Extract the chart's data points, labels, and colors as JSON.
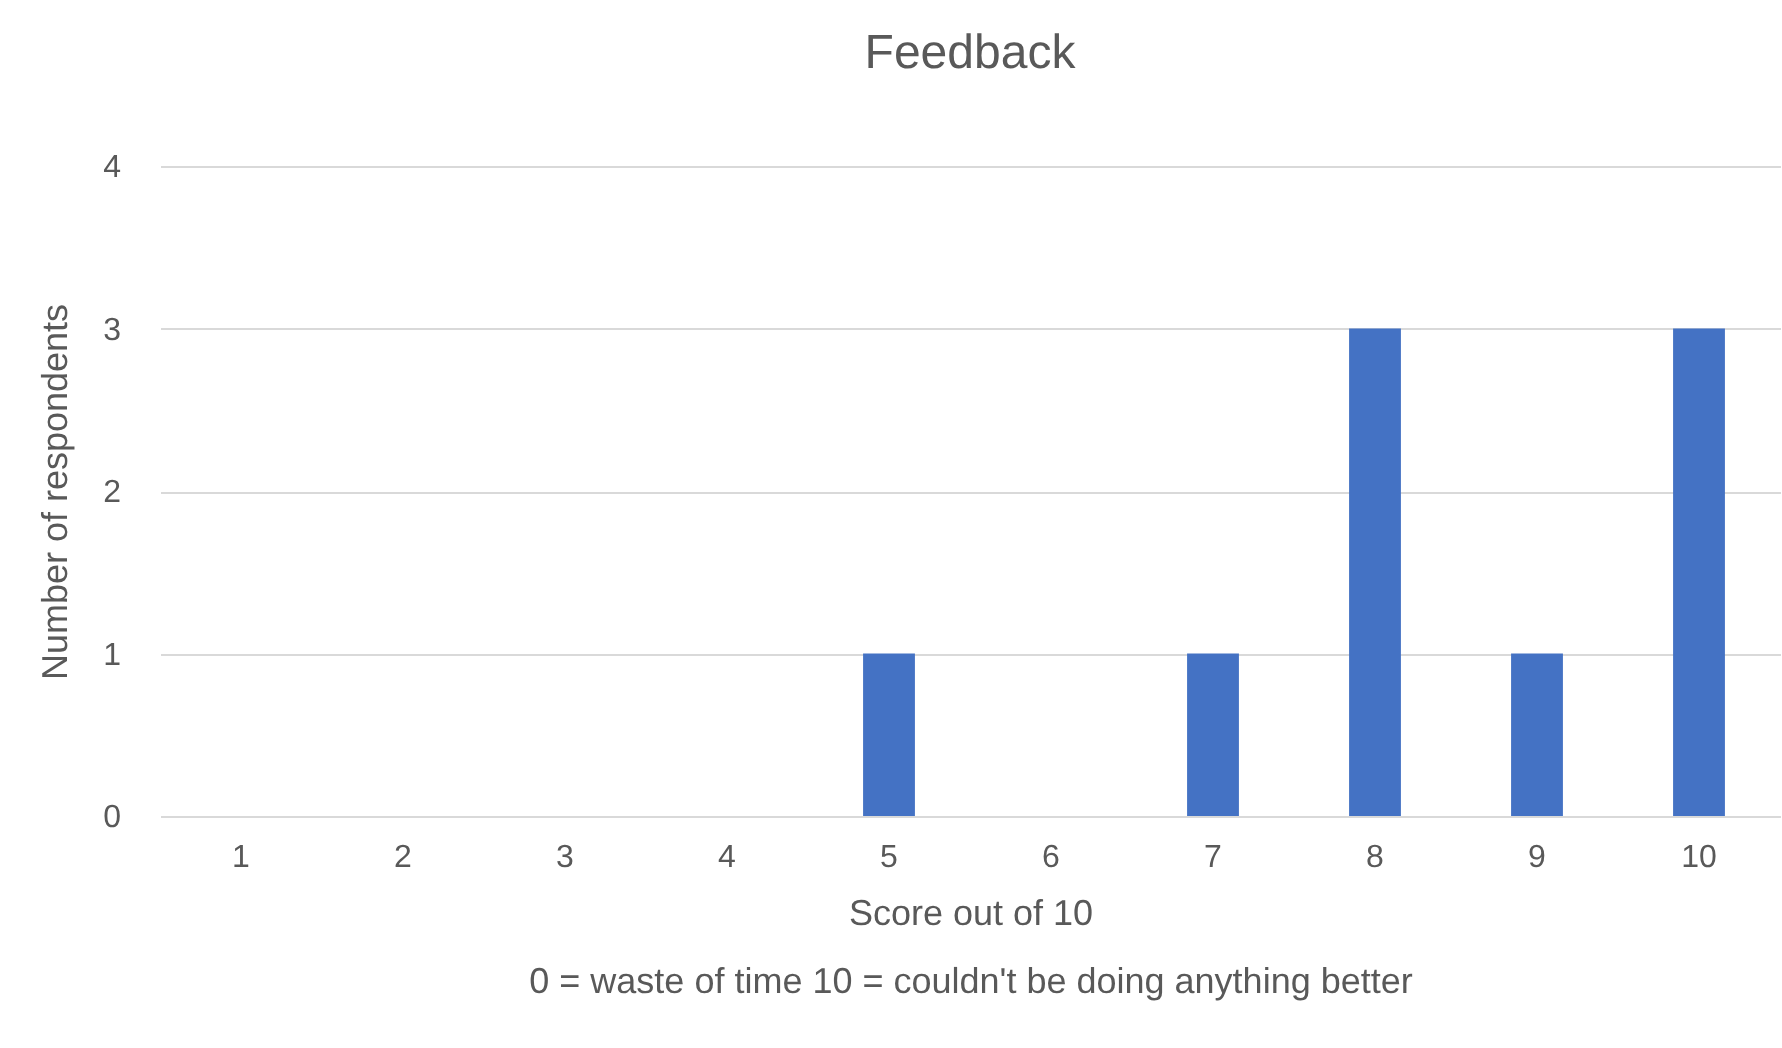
{
  "chart_data": {
    "type": "bar",
    "title": "Feedback",
    "xlabel": "Score out of 10",
    "ylabel": "Number of respondents",
    "annotations": [
      "0 = waste of time  10 = couldn't be doing anything better"
    ],
    "categories": [
      "1",
      "2",
      "3",
      "4",
      "5",
      "6",
      "7",
      "8",
      "9",
      "10"
    ],
    "values": [
      0,
      0,
      0,
      0,
      1,
      0,
      1,
      3,
      1,
      3
    ],
    "color": "#4472c4",
    "ylim": [
      0,
      4
    ],
    "yticks": [
      0,
      1,
      2,
      3,
      4
    ],
    "grid": "y"
  }
}
